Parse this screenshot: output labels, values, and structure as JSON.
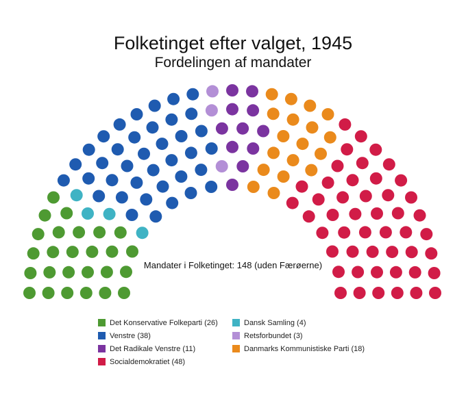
{
  "chart_data": {
    "type": "parliament",
    "title": "Folketinget efter valget, 1945",
    "subtitle": "Fordelingen af mandater",
    "center_label": "Mandater i Folketinget: 148 (uden Færøerne)",
    "total": 148,
    "series": [
      {
        "name": "Det Konservative Folkeparti",
        "legend": "Det Konservative Folkeparti (26)",
        "value": 26,
        "color": "#4e9a32"
      },
      {
        "name": "Dansk Samling",
        "legend": "Dansk Samling (4)",
        "value": 4,
        "color": "#3fb3c4"
      },
      {
        "name": "Venstre",
        "legend": "Venstre (38)",
        "value": 38,
        "color": "#1f5bb0"
      },
      {
        "name": "Retsforbundet",
        "legend": "Retsforbundet (3)",
        "value": 3,
        "color": "#b38fd6"
      },
      {
        "name": "Det Radikale Venstre",
        "legend": "Det Radikale Venstre (11)",
        "value": 11,
        "color": "#7b34a0"
      },
      {
        "name": "Danmarks Kommunistiske Parti",
        "legend": "Danmarks Kommunistiske Parti (18)",
        "value": 18,
        "color": "#ea8a1c"
      },
      {
        "name": "Socialdemokratiet",
        "legend": "Socialdemokratiet (48)",
        "value": 48,
        "color": "#d11c47"
      }
    ],
    "legend_order": [
      "Det Konservative Folkeparti",
      "Dansk Samling",
      "Venstre",
      "Retsforbundet",
      "Det Radikale Venstre",
      "Danmarks Kommunistiske Parti",
      "Socialdemokratiet"
    ],
    "legend_placement": "bottom"
  }
}
